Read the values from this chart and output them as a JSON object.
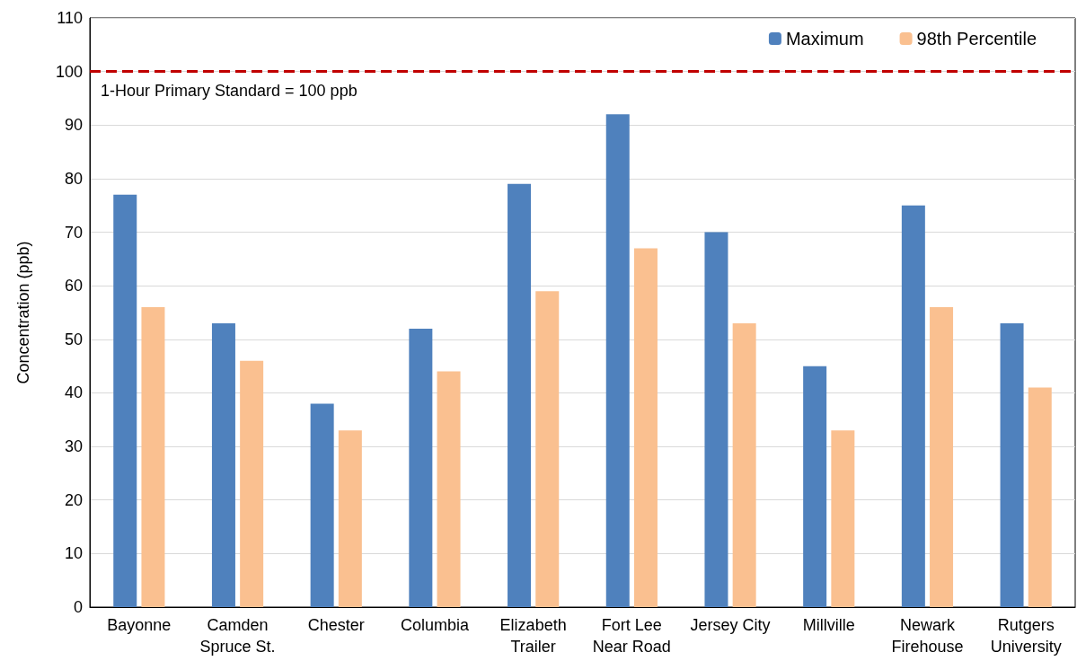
{
  "chart_data": {
    "type": "bar",
    "ylabel": "Concentration (ppb)",
    "categories": [
      "Bayonne",
      "Camden\nSpruce St.",
      "Chester",
      "Columbia",
      "Elizabeth\nTrailer",
      "Fort Lee\nNear Road",
      "Jersey City",
      "Millville",
      "Newark\nFirehouse",
      "Rutgers\nUniversity"
    ],
    "series": [
      {
        "name": "Maximum",
        "color": "#4f81bd",
        "values": [
          77,
          53,
          38,
          52,
          79,
          92,
          70,
          45,
          75,
          53
        ]
      },
      {
        "name": "98th Percentile",
        "color": "#fac090",
        "values": [
          56,
          46,
          33,
          44,
          59,
          67,
          53,
          33,
          56,
          41
        ]
      }
    ],
    "ylim": [
      0,
      110
    ],
    "yticks": [
      0,
      10,
      20,
      30,
      40,
      50,
      60,
      70,
      80,
      90,
      100,
      110
    ],
    "grid": "y",
    "legend": "top right",
    "ref_lines": [
      {
        "axis": "y",
        "value": 100,
        "label": "1-Hour Primary Standard = 100 ppb",
        "color": "#c00000",
        "line_style": "dashed"
      }
    ]
  }
}
